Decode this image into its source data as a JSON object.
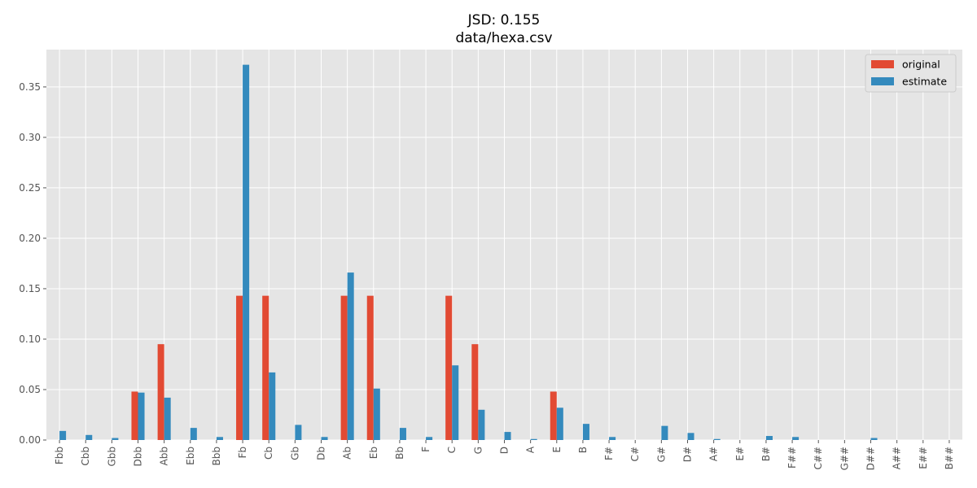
{
  "chart_data": {
    "type": "bar",
    "title": "JSD: 0.155",
    "subtitle": "data/hexa.csv",
    "xlabel": "",
    "ylabel": "",
    "ylim": [
      0,
      0.387
    ],
    "yticks": [
      0.0,
      0.05,
      0.1,
      0.15,
      0.2,
      0.25,
      0.3,
      0.35
    ],
    "ytick_labels": [
      "0.00",
      "0.05",
      "0.10",
      "0.15",
      "0.20",
      "0.25",
      "0.30",
      "0.35"
    ],
    "grid": true,
    "legend_position": "top-right",
    "categories": [
      "Fbb",
      "Cbb",
      "Gbb",
      "Dbb",
      "Abb",
      "Ebb",
      "Bbb",
      "Fb",
      "Cb",
      "Gb",
      "Db",
      "Ab",
      "Eb",
      "Bb",
      "F",
      "C",
      "G",
      "D",
      "A",
      "E",
      "B",
      "F#",
      "C#",
      "G#",
      "D#",
      "A#",
      "E#",
      "B#",
      "F##",
      "C##",
      "G##",
      "D##",
      "A##",
      "E##",
      "B##"
    ],
    "series": [
      {
        "name": "original",
        "color": "#E24A33",
        "values": [
          0,
          0,
          0,
          0.048,
          0.095,
          0,
          0,
          0.143,
          0.143,
          0,
          0,
          0.143,
          0.143,
          0,
          0,
          0.143,
          0.095,
          0,
          0,
          0.048,
          0,
          0,
          0,
          0,
          0,
          0,
          0,
          0,
          0,
          0,
          0,
          0,
          0,
          0,
          0
        ]
      },
      {
        "name": "estimate",
        "color": "#348ABD",
        "values": [
          0.009,
          0.005,
          0.002,
          0.047,
          0.042,
          0.012,
          0.003,
          0.372,
          0.067,
          0.015,
          0.003,
          0.166,
          0.051,
          0.012,
          0.003,
          0.074,
          0.03,
          0.008,
          0.001,
          0.032,
          0.016,
          0.003,
          0,
          0.014,
          0.007,
          0.001,
          0,
          0.004,
          0.003,
          0,
          0,
          0.002,
          0,
          0,
          0
        ]
      }
    ]
  },
  "colors": {
    "plot_background": "#E5E5E5",
    "grid": "#FFFFFF"
  }
}
